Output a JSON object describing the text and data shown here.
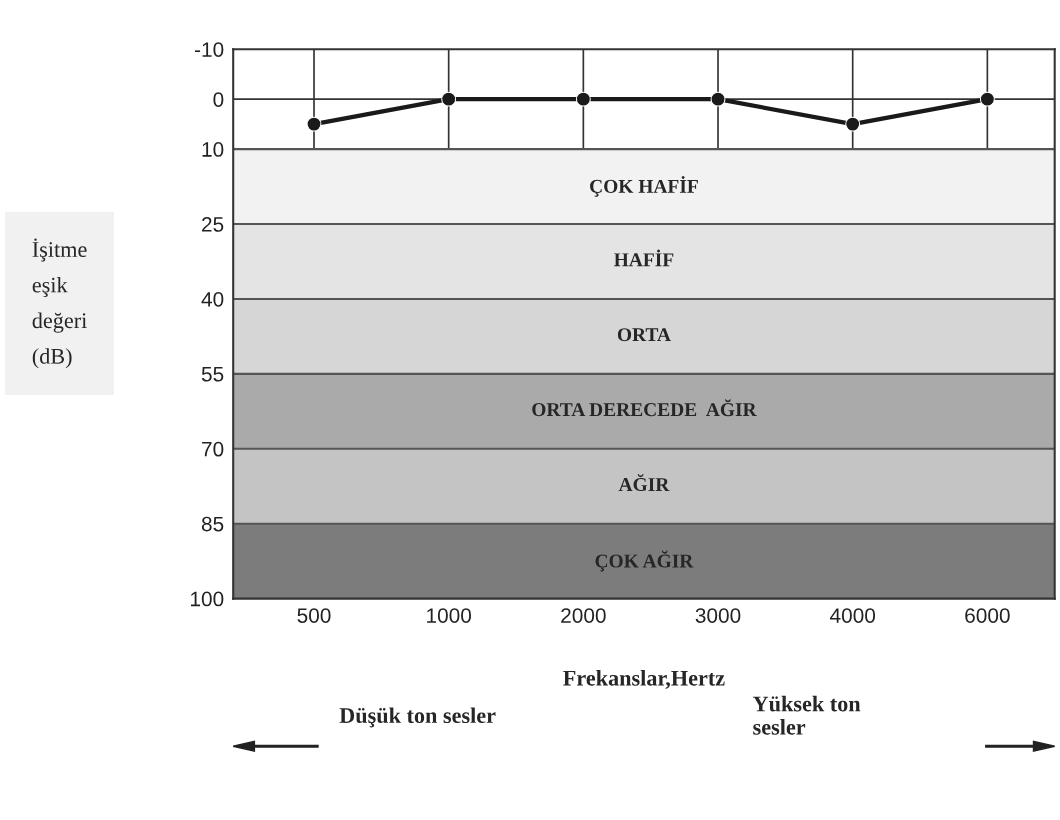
{
  "chart_data": {
    "type": "line",
    "categories": [
      "500",
      "1000",
      "2000",
      "3000",
      "4000",
      "6000"
    ],
    "series": [
      {
        "color": "#1a1a1a",
        "values": [
          5,
          0,
          0,
          0,
          5,
          0
        ]
      }
    ],
    "ylim": [
      100,
      -10
    ],
    "yticks": [
      -10,
      0,
      10,
      25,
      40,
      55,
      70,
      85,
      100
    ],
    "xlabel": "Frekanslar,Hertz",
    "ylabel": "İşitme eşik değeri (dB)",
    "bands": [
      {
        "axis": "y",
        "from": 10,
        "to": 25,
        "label": "ÇOK HAFİF",
        "color": "#f2f2f2"
      },
      {
        "axis": "y",
        "from": 25,
        "to": 40,
        "label": "HAFİF",
        "color": "#e4e4e4"
      },
      {
        "axis": "y",
        "from": 40,
        "to": 55,
        "label": "ORTA",
        "color": "#d6d6d6"
      },
      {
        "axis": "y",
        "from": 55,
        "to": 70,
        "label": "ORTA DERECEDE  AĞIR",
        "color": "#aaaaaa"
      },
      {
        "axis": "y",
        "from": 70,
        "to": 85,
        "label": "AĞIR",
        "color": "#c4c4c4"
      },
      {
        "axis": "y",
        "from": 85,
        "to": 100,
        "label": "ÇOK AĞIR",
        "color": "#7c7c7c"
      }
    ],
    "annotations": [
      "Düşük ton sesler",
      "Yüksek ton sesler"
    ],
    "grid": true,
    "marker": "circle",
    "line_style": "solid"
  }
}
